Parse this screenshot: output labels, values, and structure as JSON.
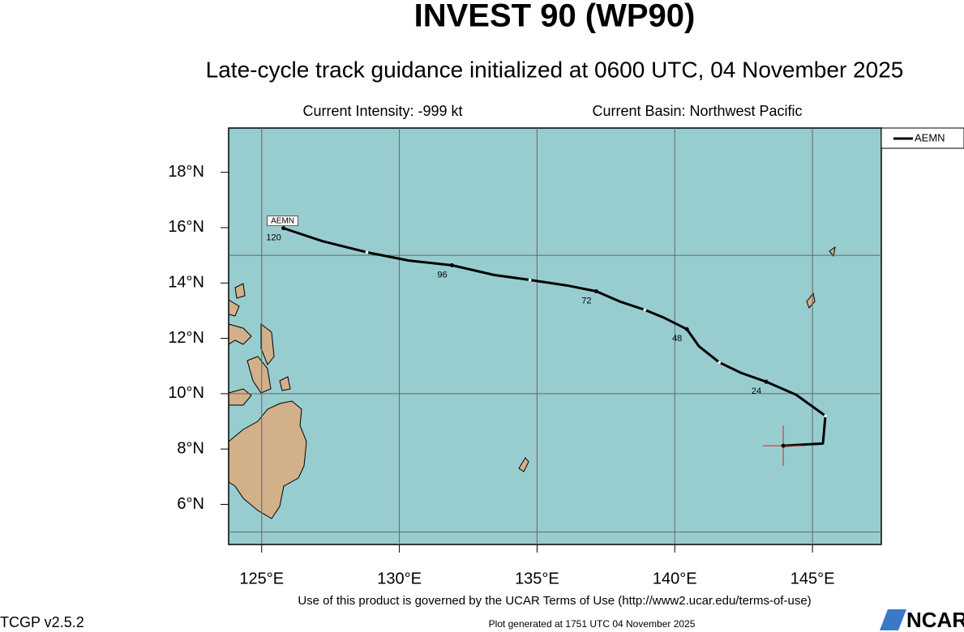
{
  "chart_data": {
    "type": "track",
    "title": "INVEST 90 (WP90)",
    "subtitle": "Late-cycle track guidance initialized at 0600 UTC, 04 November 2025",
    "intensity": "Current Intensity: -999 kt",
    "basin": "Current Basin: Northwest Pacific",
    "series": [
      {
        "name": "AEMN",
        "color": "#000000",
        "x": [
          143.94,
          145.38,
          145.47,
          144.41,
          143.32,
          142.41,
          141.62,
          140.88,
          140.44,
          139.62,
          138.91,
          138.03,
          137.15,
          136.09,
          134.74,
          133.44,
          131.91,
          130.35,
          128.82,
          127.21,
          125.79
        ],
        "values": [
          8.12,
          8.2,
          9.2,
          9.96,
          10.43,
          10.75,
          11.13,
          11.71,
          12.33,
          12.74,
          13.03,
          13.32,
          13.7,
          13.91,
          14.11,
          14.29,
          14.64,
          14.81,
          15.11,
          15.51,
          15.98
        ],
        "point_labels": [
          null,
          null,
          null,
          null,
          24,
          null,
          null,
          null,
          48,
          null,
          null,
          null,
          72,
          null,
          null,
          null,
          96,
          null,
          null,
          null,
          120
        ]
      }
    ],
    "xlim": [
      123.8,
      147.5
    ],
    "ylim": [
      4.55,
      19.6
    ],
    "xticks": [
      {
        "value": 125,
        "label": "125°E"
      },
      {
        "value": 130,
        "label": "130°E"
      },
      {
        "value": 135,
        "label": "135°E"
      },
      {
        "value": 140,
        "label": "140°E"
      },
      {
        "value": 145,
        "label": "145°E"
      }
    ],
    "yticks": [
      {
        "value": 6,
        "label": "6°N"
      },
      {
        "value": 8,
        "label": "8°N"
      },
      {
        "value": 10,
        "label": "10°N"
      },
      {
        "value": 12,
        "label": "12°N"
      },
      {
        "value": 14,
        "label": "14°N"
      },
      {
        "value": 16,
        "label": "16°N"
      },
      {
        "value": 18,
        "label": "18°N"
      }
    ],
    "grid_x": [
      125,
      130,
      135,
      140,
      145
    ],
    "grid_y": [
      5,
      10,
      15
    ],
    "terms": "Use of this product is governed by the UCAR Terms of Use (http://www2.ucar.edu/terms-of-use)",
    "version": "TCGP v2.5.2",
    "generated": "Plot generated at 1751 UTC  04 November 2025",
    "logo": "NCAR"
  }
}
